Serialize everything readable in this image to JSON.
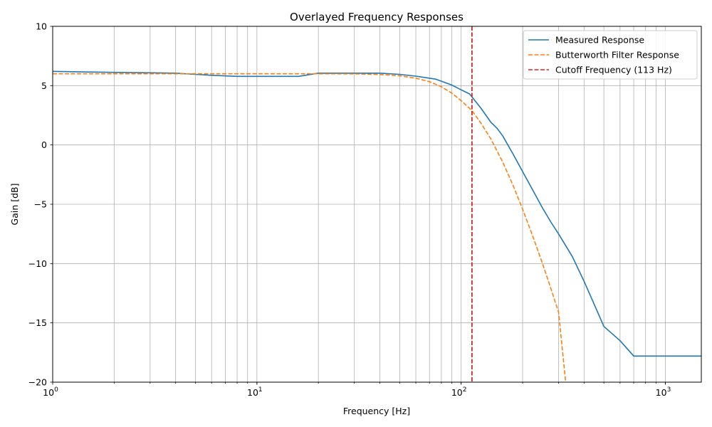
{
  "chart_data": {
    "type": "line",
    "title": "Overlayed Frequency Responses",
    "xlabel": "Frequency [Hz]",
    "ylabel": "Gain [dB]",
    "xscale": "log",
    "xlim": [
      1,
      1500
    ],
    "ylim": [
      -20,
      10
    ],
    "grid": "both, including minor x gridlines",
    "legend_position": "top-right",
    "x_ticks": [
      {
        "value": 1,
        "base": "10",
        "exp": "0"
      },
      {
        "value": 10,
        "base": "10",
        "exp": "1"
      },
      {
        "value": 100,
        "base": "10",
        "exp": "2"
      },
      {
        "value": 1000,
        "base": "10",
        "exp": "3"
      }
    ],
    "y_ticks": [
      {
        "value": 10,
        "label": "10"
      },
      {
        "value": 5,
        "label": "5"
      },
      {
        "value": 0,
        "label": "0"
      },
      {
        "value": -5,
        "label": "−5"
      },
      {
        "value": -10,
        "label": "−10"
      },
      {
        "value": -15,
        "label": "−15"
      },
      {
        "value": -20,
        "label": "−20"
      }
    ],
    "series": [
      {
        "name": "Measured Response",
        "color": "#1f77b4",
        "style": "solid",
        "x": [
          1,
          1.5,
          2,
          3,
          4,
          5,
          6,
          8,
          10,
          12,
          16,
          20,
          25,
          30,
          40,
          50,
          60,
          75,
          90,
          100,
          110,
          125,
          140,
          150,
          160,
          180,
          200,
          225,
          250,
          275,
          300,
          350,
          400,
          450,
          500,
          600,
          700,
          800,
          1000,
          1500
        ],
        "y": [
          6.2,
          6.15,
          6.12,
          6.08,
          6.05,
          5.95,
          5.87,
          5.78,
          5.78,
          5.78,
          5.78,
          6.05,
          6.05,
          6.05,
          6.05,
          5.95,
          5.8,
          5.55,
          5.05,
          4.65,
          4.3,
          3.1,
          1.9,
          1.4,
          0.75,
          -0.8,
          -2.25,
          -3.85,
          -5.3,
          -6.5,
          -7.5,
          -9.4,
          -11.5,
          -13.5,
          -15.3,
          -16.5,
          -17.8,
          -17.8,
          -17.8,
          -17.8
        ]
      },
      {
        "name": "Butterworth Filter Response",
        "color": "#ff7f0e",
        "style": "dashed",
        "x": [
          1,
          5,
          10,
          20,
          30,
          40,
          50,
          60,
          70,
          80,
          90,
          100,
          113,
          125,
          140,
          160,
          180,
          200,
          225,
          250,
          275,
          300,
          325
        ],
        "y": [
          6,
          6,
          6,
          6,
          5.99,
          5.94,
          5.83,
          5.63,
          5.33,
          4.91,
          4.37,
          3.73,
          2.9,
          1.84,
          0.49,
          -1.46,
          -3.45,
          -5.42,
          -7.76,
          -9.98,
          -12.1,
          -14.1,
          -20
        ]
      },
      {
        "name": "Cutoff Frequency (113 Hz)",
        "color": "#d62728",
        "style": "dashed",
        "vline_x": 113
      }
    ]
  }
}
